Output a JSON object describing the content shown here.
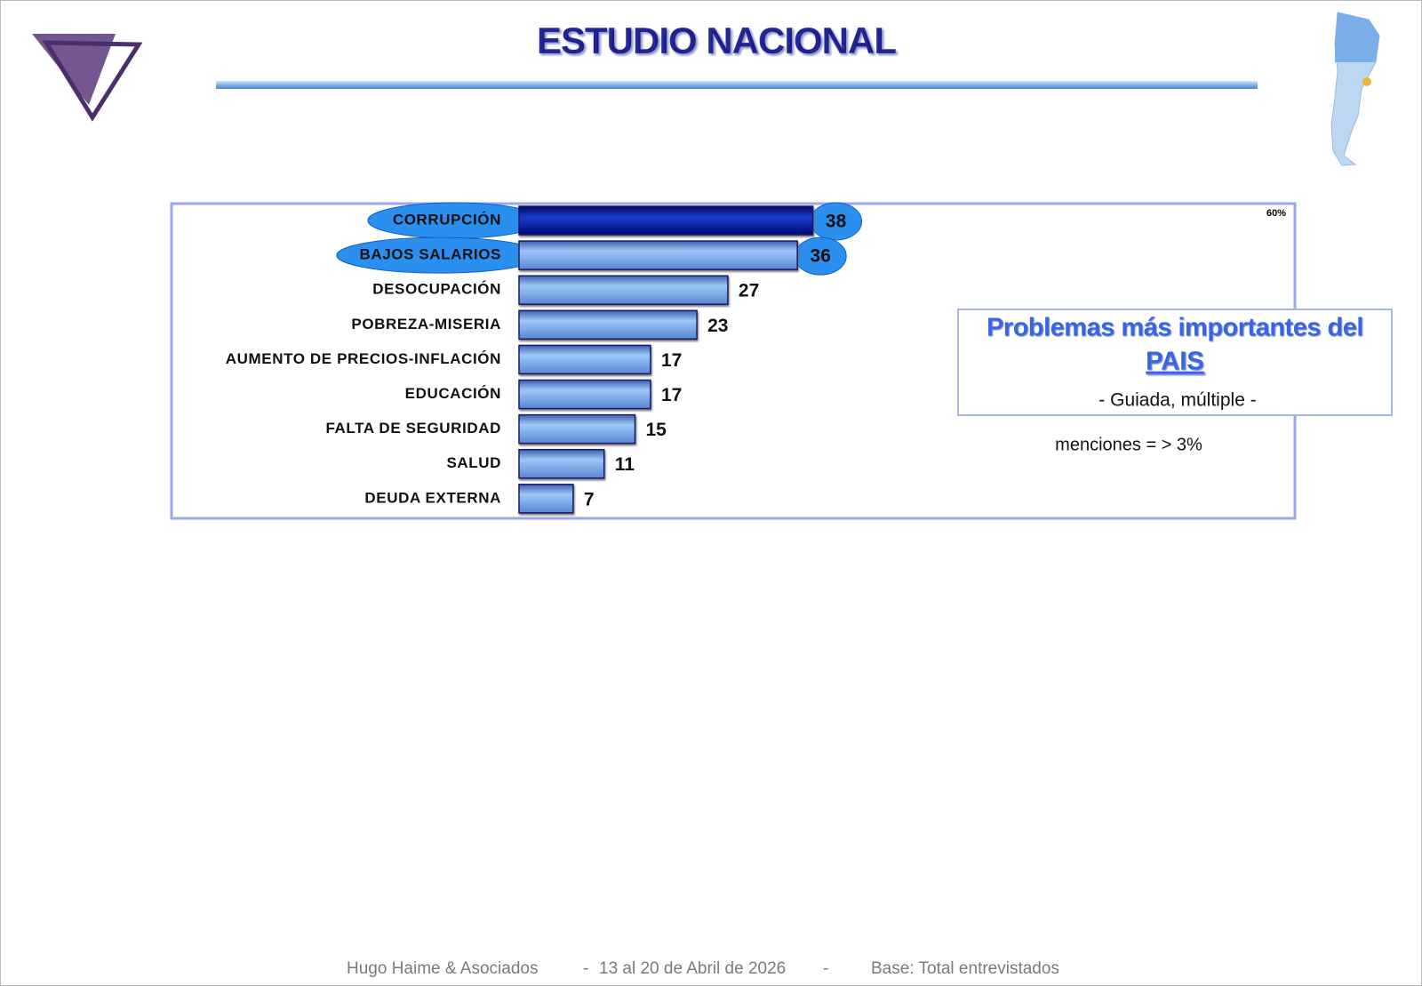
{
  "chart_data": {
    "type": "hbar",
    "title": "ESTUDIO NACIONAL",
    "categories": [
      "CORRUPCIÓN",
      "BAJOS SALARIOS",
      "DESOCUPACIÓN",
      "POBREZA-MISERIA",
      "AUMENTO DE PRECIOS-INFLACIÓN",
      "EDUCACIÓN",
      "FALTA DE SEGURIDAD",
      "SALUD",
      "DEUDA EXTERNA"
    ],
    "values": [
      38,
      36,
      27,
      23,
      17,
      17,
      15,
      11,
      7
    ],
    "highlight": [
      true,
      true,
      false,
      false,
      false,
      false,
      false,
      false,
      false
    ],
    "color": "#6fa8ec",
    "highlight_bar_color": "#000f8a",
    "highlight_color": "#2b8ff0",
    "xlim": [
      0,
      100
    ],
    "corner_label": "60%",
    "box_title": [
      "Problemas más importantes del",
      "PAIS"
    ],
    "box_subtitle": "- Guiada, múltiple -",
    "note": "menciones = > 3%"
  },
  "footer": [
    "Hugo Haime & Asociados",
    "-",
    "13 al 20 de Abril de 2026",
    "-",
    "Base: Total entrevistados"
  ]
}
